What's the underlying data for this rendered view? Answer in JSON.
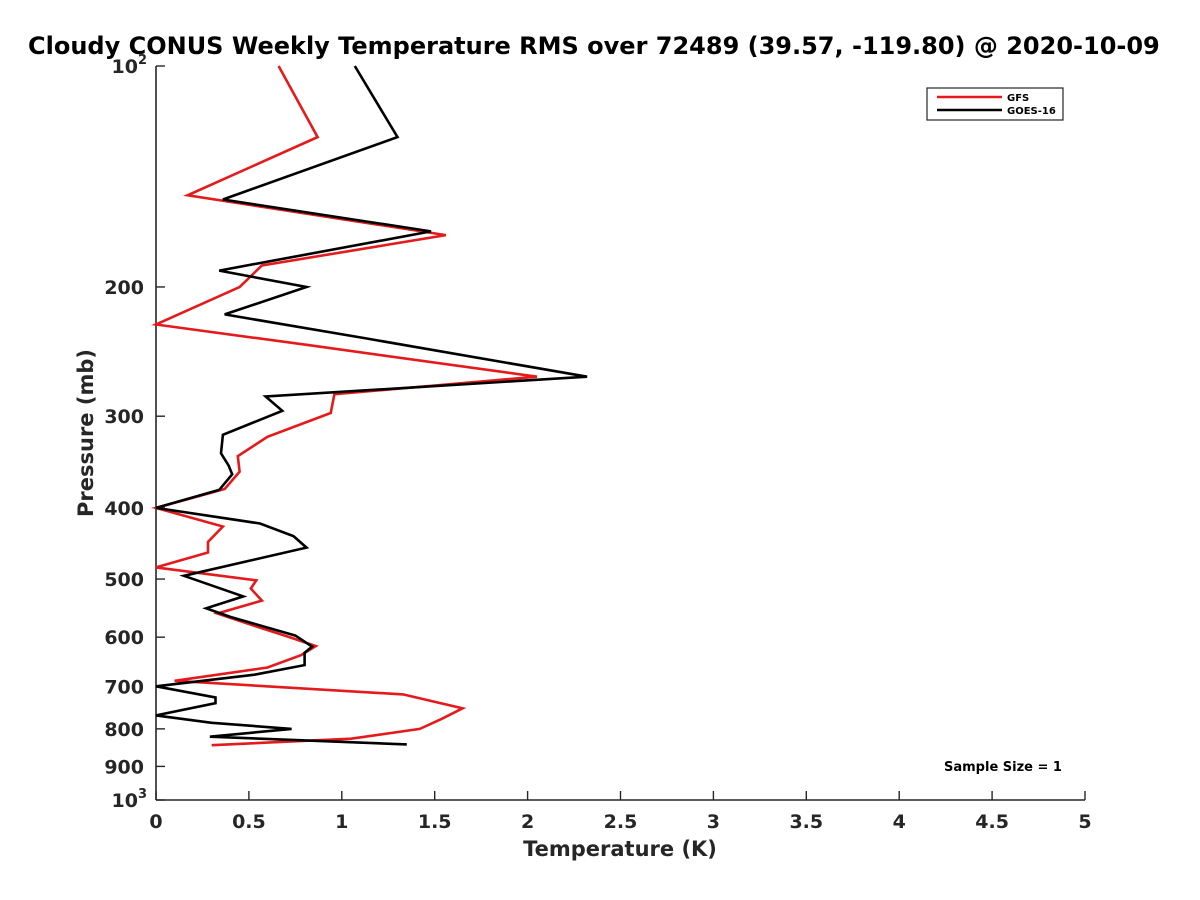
{
  "chart_data": {
    "type": "line",
    "title": "Cloudy CONUS Weekly Temperature RMS over 72489 (39.57, -119.80) @ 2020-10-09",
    "xlabel": "Temperature (K)",
    "ylabel": "Pressure (mb)",
    "xlim": [
      0,
      5
    ],
    "ylim": [
      100,
      1000
    ],
    "y_scale": "log",
    "y_reversed": true,
    "grid": false,
    "legend_position": "top-right",
    "x_ticks": [
      {
        "value": 0,
        "label": "0"
      },
      {
        "value": 0.5,
        "label": "0.5"
      },
      {
        "value": 1,
        "label": "1"
      },
      {
        "value": 1.5,
        "label": "1.5"
      },
      {
        "value": 2,
        "label": "2"
      },
      {
        "value": 2.5,
        "label": "2.5"
      },
      {
        "value": 3,
        "label": "3"
      },
      {
        "value": 3.5,
        "label": "3.5"
      },
      {
        "value": 4,
        "label": "4"
      },
      {
        "value": 4.5,
        "label": "4.5"
      },
      {
        "value": 5,
        "label": "5"
      }
    ],
    "y_ticks": [
      {
        "value": 100,
        "base": "10",
        "exp": "2"
      },
      {
        "value": 200,
        "label": "200"
      },
      {
        "value": 300,
        "label": "300"
      },
      {
        "value": 400,
        "label": "400"
      },
      {
        "value": 500,
        "label": "500"
      },
      {
        "value": 600,
        "label": "600"
      },
      {
        "value": 700,
        "label": "700"
      },
      {
        "value": 800,
        "label": "800"
      },
      {
        "value": 900,
        "label": "900"
      },
      {
        "value": 1000,
        "base": "10",
        "exp": "3"
      }
    ],
    "annotation": "Sample Size = 1",
    "series": [
      {
        "name": "GFS",
        "color": "#e41a1c",
        "points": [
          [
            0.66,
            100
          ],
          [
            0.87,
            125
          ],
          [
            0.17,
            150
          ],
          [
            1.56,
            170
          ],
          [
            0.57,
            187
          ],
          [
            0.45,
            200
          ],
          [
            0.0,
            225
          ],
          [
            0.82,
            240
          ],
          [
            2.05,
            265
          ],
          [
            0.96,
            280
          ],
          [
            0.94,
            297
          ],
          [
            0.6,
            320
          ],
          [
            0.44,
            340
          ],
          [
            0.45,
            357
          ],
          [
            0.37,
            377
          ],
          [
            0.0,
            400
          ],
          [
            0.36,
            424
          ],
          [
            0.28,
            445
          ],
          [
            0.28,
            460
          ],
          [
            0.0,
            482
          ],
          [
            0.54,
            502
          ],
          [
            0.51,
            515
          ],
          [
            0.57,
            535
          ],
          [
            0.33,
            557
          ],
          [
            0.51,
            577
          ],
          [
            0.72,
            600
          ],
          [
            0.86,
            617
          ],
          [
            0.78,
            635
          ],
          [
            0.6,
            660
          ],
          [
            0.1,
            688
          ],
          [
            1.33,
            718
          ],
          [
            1.65,
            750
          ],
          [
            1.54,
            775
          ],
          [
            1.42,
            800
          ],
          [
            1.05,
            825
          ],
          [
            0.3,
            842
          ]
        ]
      },
      {
        "name": "GOES-16",
        "color": "#000000",
        "points": [
          [
            1.07,
            100
          ],
          [
            1.3,
            125
          ],
          [
            0.36,
            152
          ],
          [
            1.48,
            168
          ],
          [
            0.34,
            190
          ],
          [
            0.81,
            200
          ],
          [
            0.37,
            218
          ],
          [
            1.13,
            235
          ],
          [
            2.32,
            265
          ],
          [
            0.59,
            282
          ],
          [
            0.68,
            295
          ],
          [
            0.36,
            318
          ],
          [
            0.35,
            337
          ],
          [
            0.39,
            350
          ],
          [
            0.41,
            360
          ],
          [
            0.34,
            378
          ],
          [
            0.0,
            400
          ],
          [
            0.56,
            420
          ],
          [
            0.74,
            437
          ],
          [
            0.81,
            453
          ],
          [
            0.15,
            495
          ],
          [
            0.47,
            528
          ],
          [
            0.27,
            548
          ],
          [
            0.4,
            563
          ],
          [
            0.75,
            597
          ],
          [
            0.84,
            618
          ],
          [
            0.8,
            630
          ],
          [
            0.8,
            655
          ],
          [
            0.53,
            675
          ],
          [
            0.0,
            700
          ],
          [
            0.32,
            725
          ],
          [
            0.32,
            738
          ],
          [
            0.0,
            767
          ],
          [
            0.3,
            785
          ],
          [
            0.73,
            800
          ],
          [
            0.29,
            820
          ],
          [
            1.35,
            840
          ]
        ]
      }
    ]
  }
}
